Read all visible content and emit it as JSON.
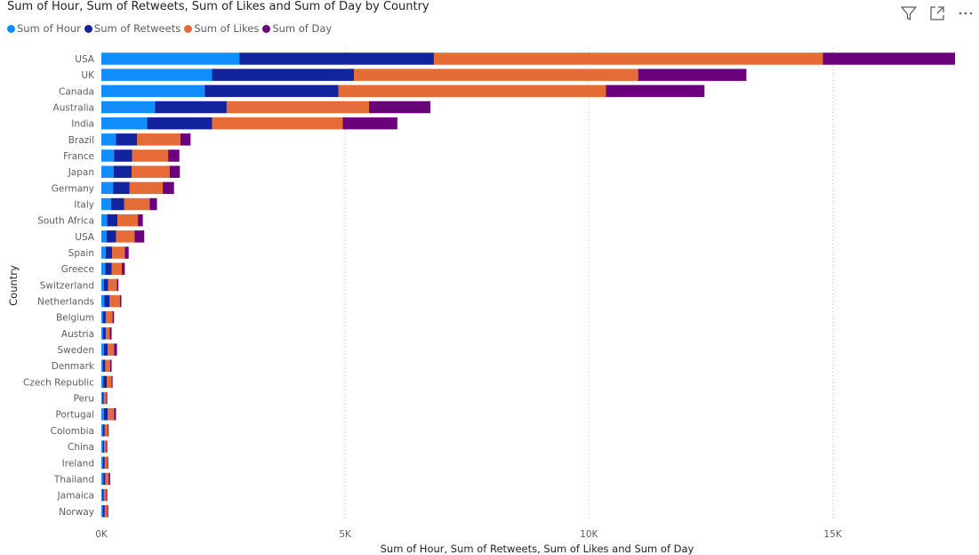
{
  "colors": {
    "hour": "#118DFF",
    "retweets": "#12239E",
    "likes": "#E66C37",
    "day": "#6B007B",
    "grid": "#C8C6C4",
    "icon": "#605e5c"
  },
  "header": {
    "icons": [
      "filter-icon",
      "focus-mode-icon",
      "more-options-icon"
    ]
  },
  "chart_data": {
    "type": "bar",
    "orientation": "horizontal",
    "stacked": true,
    "title": "Sum of Hour, Sum of Retweets, Sum of Likes and Sum of Day by Country",
    "xlabel": "Sum of Hour, Sum of Retweets, Sum of Likes and Sum of Day",
    "ylabel": "Country",
    "xlim": [
      0,
      17800
    ],
    "xticks": [
      0,
      5000,
      10000,
      15000
    ],
    "xtick_labels": [
      "0K",
      "5K",
      "10K",
      "15K"
    ],
    "grid": true,
    "legend_position": "top-left",
    "categories": [
      "USA",
      "UK",
      "Canada",
      "Australia",
      "India",
      "Brazil",
      "France",
      "Japan",
      "Germany",
      "Italy",
      "South Africa",
      "USA",
      "Spain",
      "Greece",
      "Switzerland",
      "Netherlands",
      "Belgium",
      "Austria",
      "Sweden",
      "Denmark",
      "Czech Republic",
      "Peru",
      "Portugal",
      "Colombia",
      "China",
      "Ireland",
      "Thailand",
      "Jamaica",
      "Norway"
    ],
    "series": [
      {
        "name": "Sum of Hour",
        "color_key": "hour",
        "values": [
          2830,
          2270,
          2120,
          1100,
          940,
          300,
          260,
          250,
          240,
          200,
          120,
          110,
          90,
          80,
          50,
          60,
          30,
          30,
          50,
          30,
          40,
          20,
          50,
          30,
          30,
          30,
          40,
          20,
          30
        ]
      },
      {
        "name": "Sum of Retweets",
        "color_key": "retweets",
        "values": [
          3990,
          2910,
          2740,
          1470,
          1330,
          430,
          370,
          370,
          340,
          270,
          210,
          190,
          130,
          130,
          90,
          110,
          60,
          60,
          80,
          50,
          70,
          30,
          80,
          40,
          30,
          40,
          40,
          30,
          40
        ]
      },
      {
        "name": "Sum of Likes",
        "color_key": "likes",
        "values": [
          7980,
          5830,
          5490,
          2920,
          2680,
          890,
          740,
          780,
          680,
          520,
          420,
          380,
          260,
          210,
          180,
          210,
          140,
          80,
          130,
          100,
          100,
          50,
          130,
          60,
          40,
          50,
          70,
          50,
          50
        ]
      },
      {
        "name": "Sum of Day",
        "color_key": "day",
        "values": [
          2710,
          2220,
          2020,
          1260,
          1120,
          210,
          230,
          210,
          230,
          150,
          100,
          200,
          80,
          60,
          30,
          30,
          30,
          40,
          60,
          30,
          20,
          20,
          40,
          20,
          20,
          20,
          30,
          20,
          20
        ]
      }
    ]
  }
}
